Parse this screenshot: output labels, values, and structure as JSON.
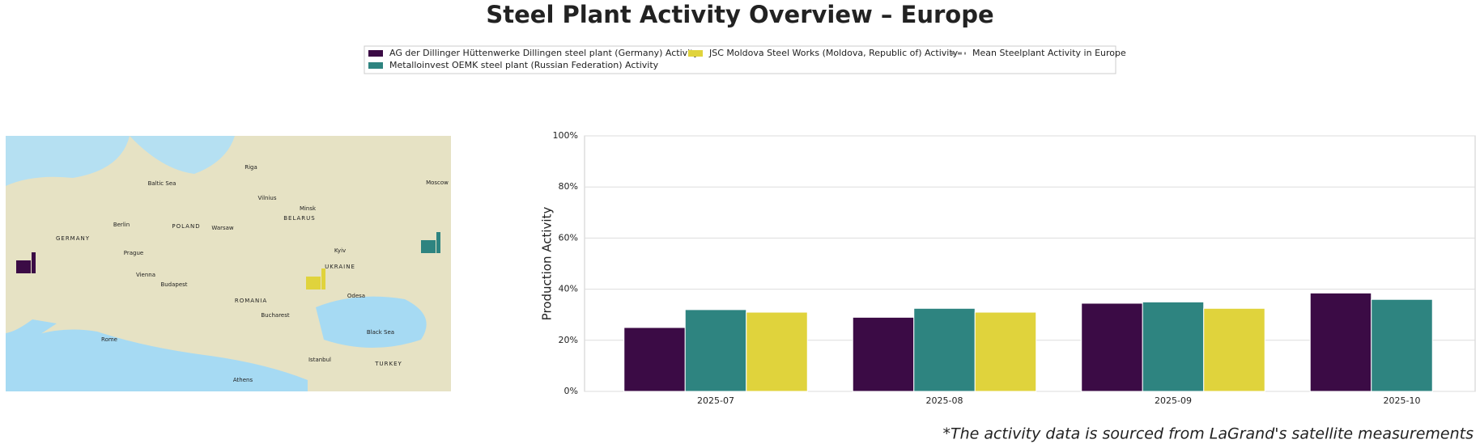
{
  "chart_data": {
    "type": "bar",
    "title": "Steel Plant Activity Overview – Europe",
    "ylabel": "Production Activity",
    "footnote": "*The activity data is sourced from LaGrand's satellite measurements",
    "categories": [
      "2025-07",
      "2025-08",
      "2025-09",
      "2025-10"
    ],
    "series": [
      {
        "name": "AG der Dillinger Hüttenwerke Dillingen steel plant (Germany) Activity",
        "color": "#3b0b45",
        "values": [
          25,
          29,
          34.5,
          38.5
        ]
      },
      {
        "name": "Metalloinvest OEMK steel plant (Russian Federation) Activity",
        "color": "#2e8480",
        "values": [
          32,
          32.5,
          35,
          36
        ]
      },
      {
        "name": "JSC Moldova Steel Works (Moldova, Republic of) Activity",
        "color": "#e0d33c",
        "values": [
          31,
          31,
          32.5,
          null
        ]
      },
      {
        "name": "Mean Steelplant Activity in Europe",
        "color": "#888888",
        "style": "dashed",
        "values": [
          null,
          null,
          null,
          null
        ]
      }
    ],
    "ylim": [
      0,
      100
    ],
    "yticks": [
      {
        "value": 0,
        "label": "0%"
      },
      {
        "value": 20,
        "label": "20%"
      },
      {
        "value": 40,
        "label": "40%"
      },
      {
        "value": 60,
        "label": "60%"
      },
      {
        "value": 80,
        "label": "80%"
      },
      {
        "value": 100,
        "label": "100%"
      }
    ],
    "grid": true,
    "map": {
      "labels": [
        "Baltic Sea",
        "Black Sea",
        "UKRAINE",
        "POLAND",
        "GERMANY",
        "ROMANIA",
        "TURKEY",
        "BELARUS",
        "Warsaw",
        "Berlin",
        "Kyiv",
        "Minsk",
        "Vienna",
        "Budapest",
        "Prague",
        "Riga",
        "Vilnius",
        "Moscow",
        "Odesa",
        "Bucharest",
        "Istanbul",
        "Athens",
        "Rome"
      ]
    }
  }
}
